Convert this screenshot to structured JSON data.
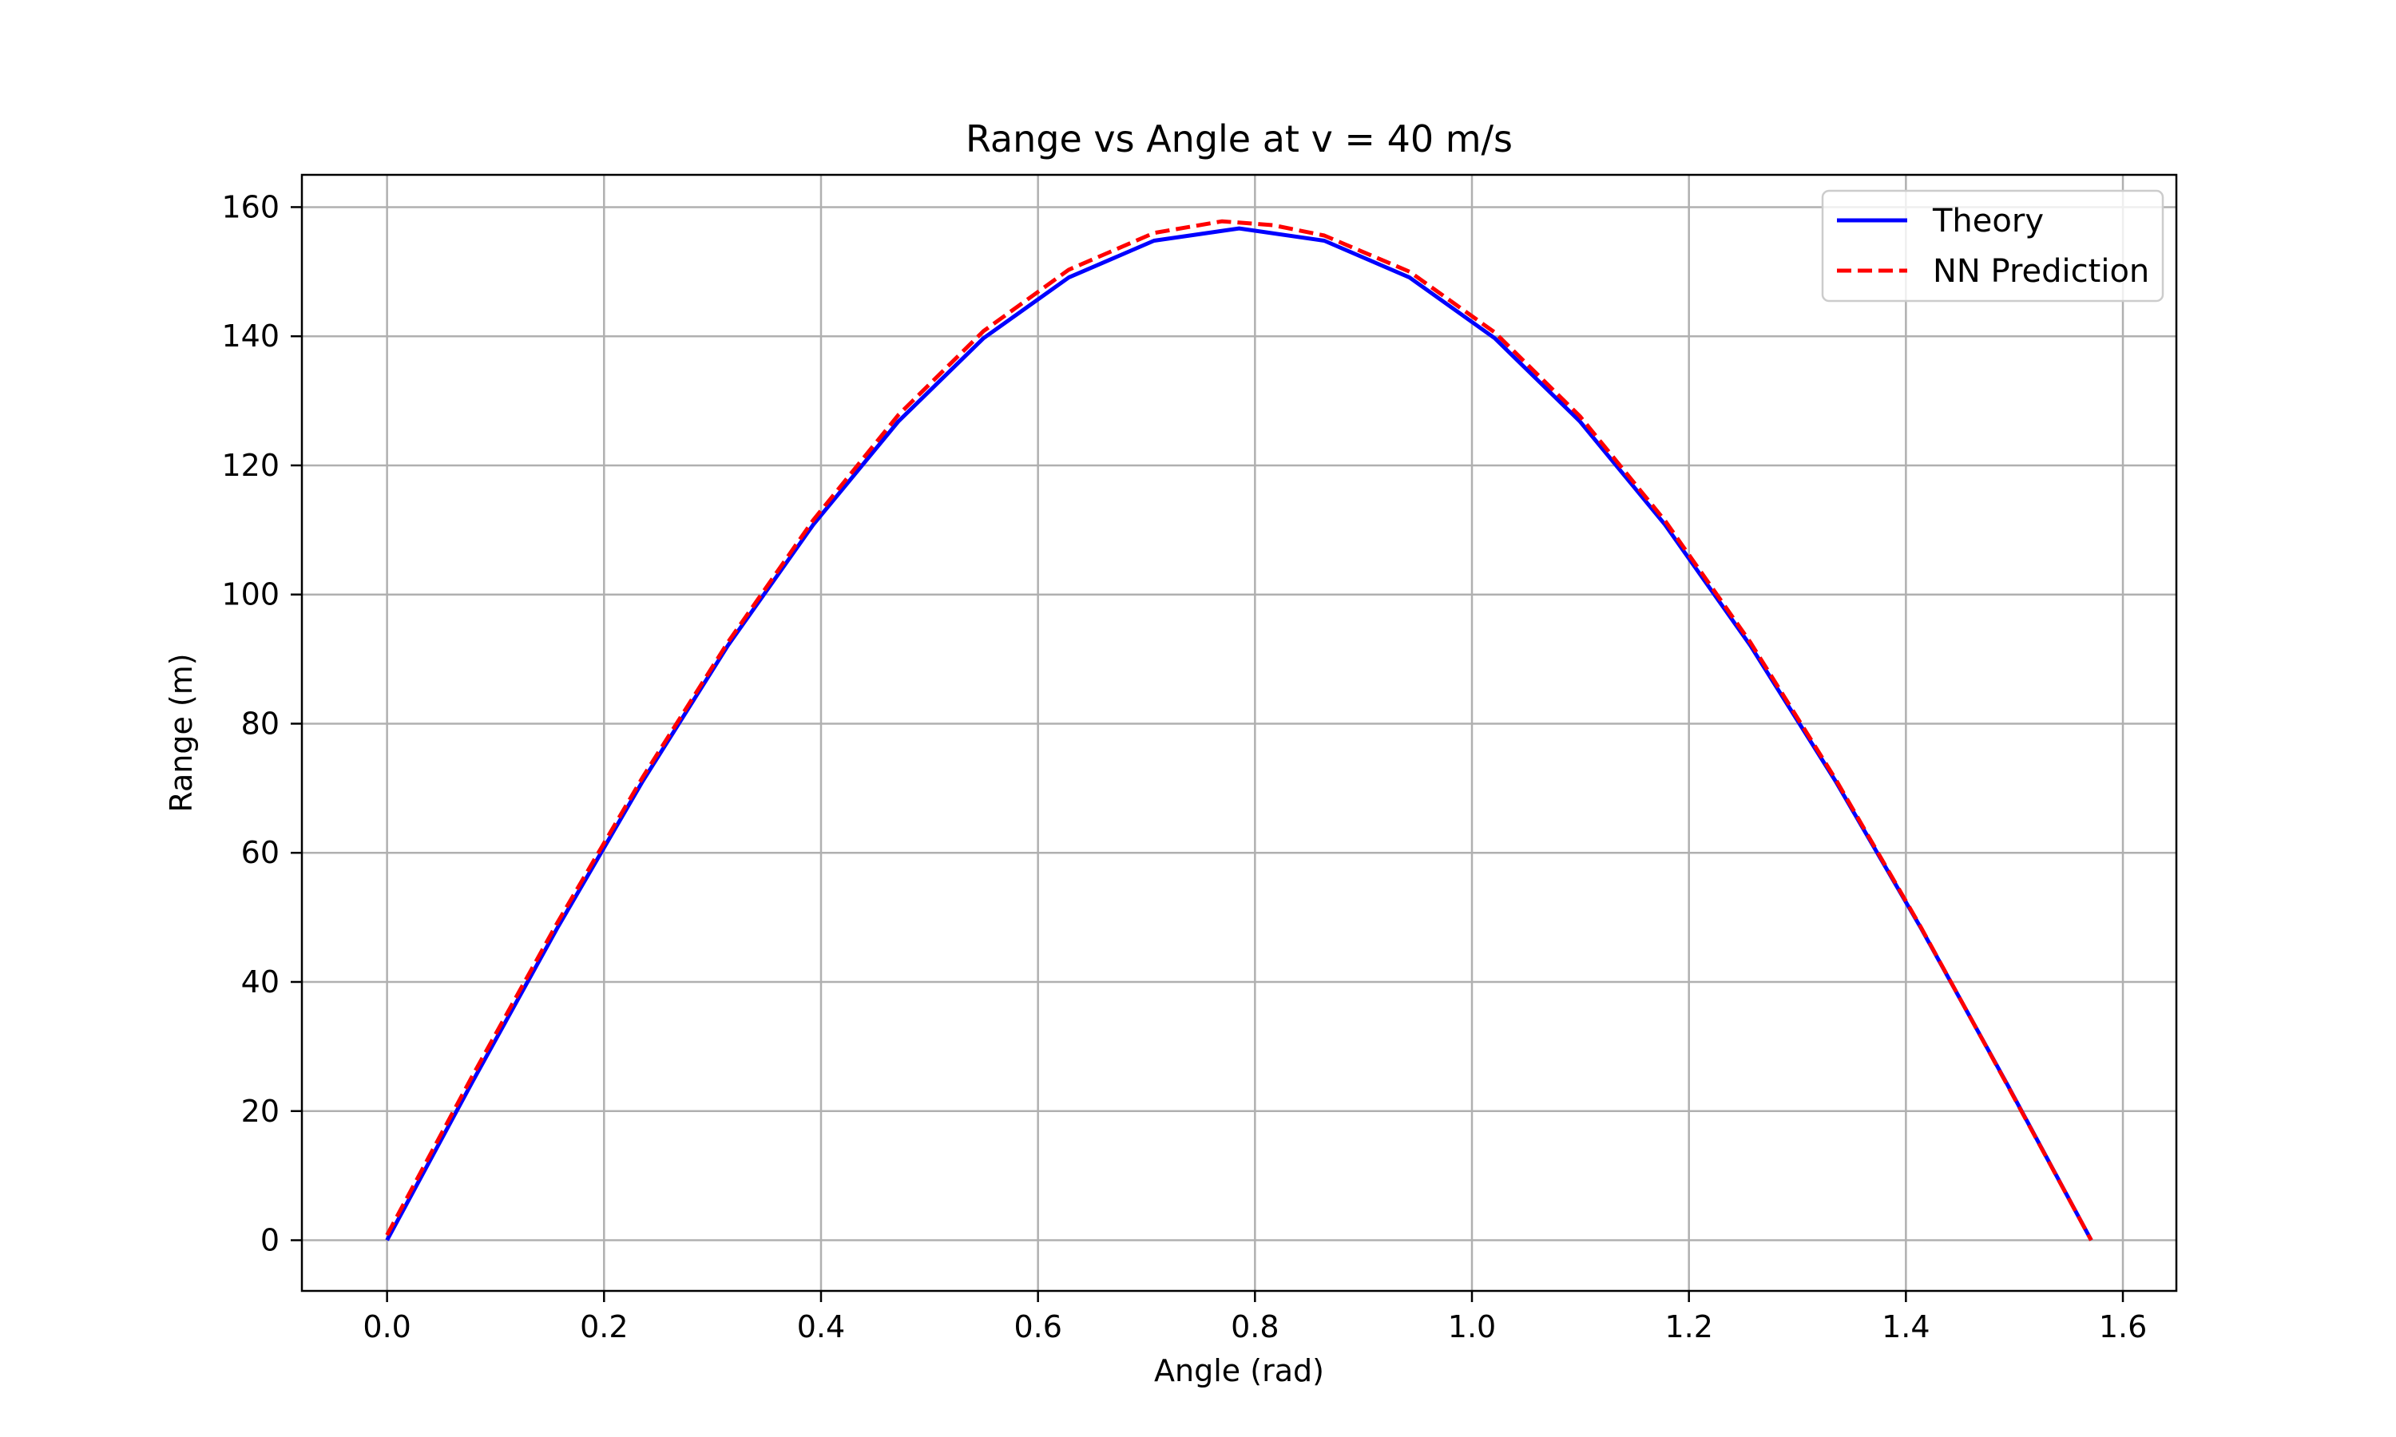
{
  "chart_data": {
    "type": "line",
    "title": "Range vs Angle at v = 40 m/s",
    "xlabel": "Angle (rad)",
    "ylabel": "Range (m)",
    "xlim": [
      -0.0785,
      1.6493
    ],
    "ylim": [
      -7.85,
      165.0
    ],
    "x_ticks": [
      0.0,
      0.2,
      0.4,
      0.6,
      0.8,
      1.0,
      1.2,
      1.4,
      1.6
    ],
    "x_tick_labels": [
      "0.0",
      "0.2",
      "0.4",
      "0.6",
      "0.8",
      "1.0",
      "1.2",
      "1.4",
      "1.6"
    ],
    "y_ticks": [
      0,
      20,
      40,
      60,
      80,
      100,
      120,
      140,
      160
    ],
    "y_tick_labels": [
      "0",
      "20",
      "40",
      "60",
      "80",
      "100",
      "120",
      "140",
      "160"
    ],
    "grid": true,
    "legend_position": "top-right",
    "series": [
      {
        "name": "Theory",
        "color": "#0000ff",
        "style": "solid",
        "x": [
          0.0,
          0.0785,
          0.1571,
          0.2356,
          0.3142,
          0.3927,
          0.4712,
          0.5498,
          0.6283,
          0.7069,
          0.7854,
          0.8639,
          0.9425,
          1.021,
          1.0996,
          1.1781,
          1.2566,
          1.3352,
          1.4137,
          1.4923,
          1.5708
        ],
        "y": [
          0.0,
          24.5,
          48.4,
          71.1,
          92.1,
          110.8,
          126.8,
          139.7,
          149.1,
          154.8,
          156.7,
          154.8,
          149.1,
          139.7,
          126.8,
          110.8,
          92.1,
          71.1,
          48.4,
          24.5,
          0.0
        ]
      },
      {
        "name": "NN Prediction",
        "color": "#ff0000",
        "style": "dashed",
        "x": [
          0.0,
          0.0785,
          0.1571,
          0.2356,
          0.3142,
          0.3927,
          0.4712,
          0.5498,
          0.6283,
          0.7069,
          0.7697,
          0.8168,
          0.8639,
          0.9425,
          1.021,
          1.0996,
          1.1781,
          1.2566,
          1.3352,
          1.4137,
          1.4923,
          1.5708
        ],
        "y": [
          0.8,
          25.4,
          49.2,
          71.7,
          92.6,
          111.5,
          127.8,
          140.8,
          150.3,
          156.0,
          157.8,
          157.2,
          155.6,
          150.0,
          140.6,
          127.6,
          111.4,
          92.6,
          71.4,
          48.5,
          24.4,
          0.0
        ]
      }
    ]
  }
}
